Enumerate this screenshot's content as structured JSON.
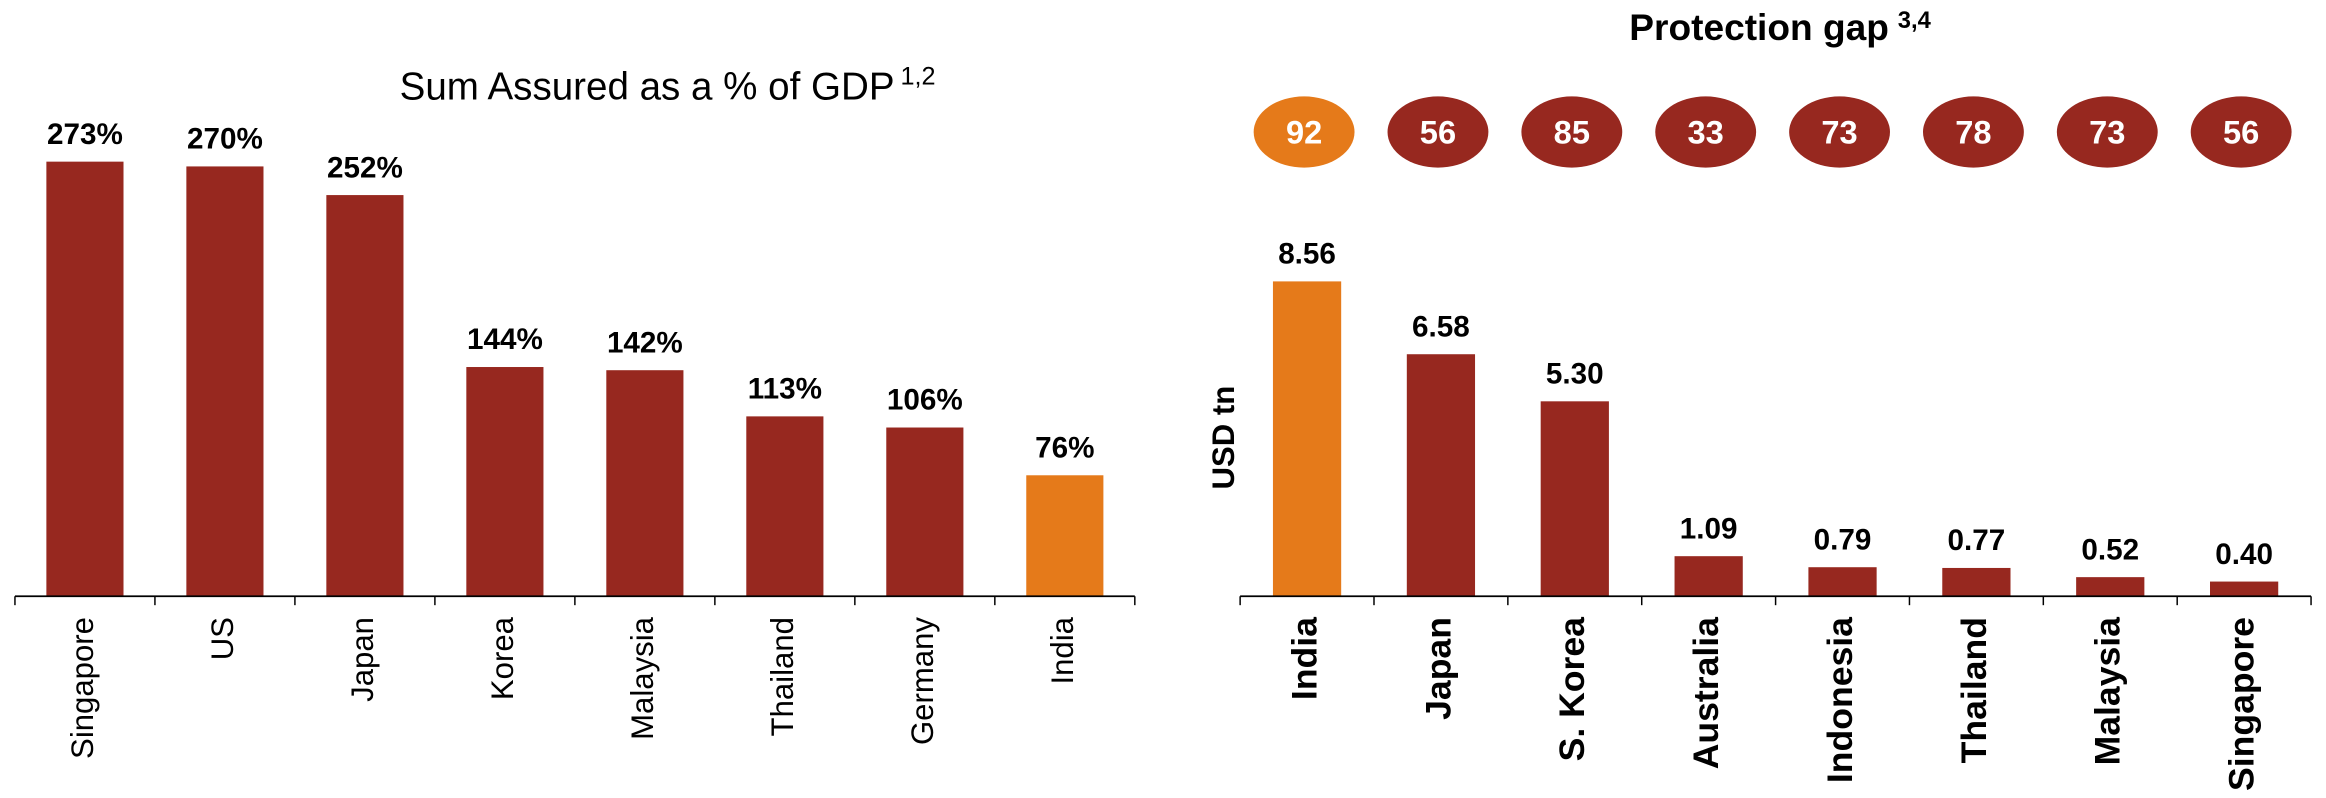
{
  "chart_data": [
    {
      "type": "bar",
      "title": "Sum Assured as a % of GDP",
      "title_note": "1,2",
      "categories": [
        "Singapore",
        "US",
        "Japan",
        "Korea",
        "Malaysia",
        "Thailand",
        "Germany",
        "India"
      ],
      "values": [
        273,
        270,
        252,
        144,
        142,
        113,
        106,
        76
      ],
      "value_labels": [
        "273%",
        "270%",
        "252%",
        "144%",
        "142%",
        "113%",
        "106%",
        "76%"
      ],
      "colors": [
        "#97281f",
        "#97281f",
        "#97281f",
        "#97281f",
        "#97281f",
        "#97281f",
        "#97281f",
        "#e57a1a"
      ],
      "ylim": [
        0,
        300
      ]
    },
    {
      "type": "bar",
      "title": "Protection gap",
      "title_note": "3,4",
      "ylabel": "USD tn",
      "badges": [
        92,
        56,
        85,
        33,
        73,
        78,
        73,
        56
      ],
      "badge_colors": [
        "#e57a1a",
        "#97281f",
        "#97281f",
        "#97281f",
        "#97281f",
        "#97281f",
        "#97281f",
        "#97281f"
      ],
      "categories": [
        "India",
        "Japan",
        "S. Korea",
        "Australia",
        "Indonesia",
        "Thailand",
        "Malaysia",
        "Singapore"
      ],
      "values": [
        8.56,
        6.58,
        5.3,
        1.09,
        0.79,
        0.77,
        0.52,
        0.4
      ],
      "value_labels": [
        "8.56",
        "6.58",
        "5.30",
        "1.09",
        "0.79",
        "0.77",
        "0.52",
        "0.40"
      ],
      "colors": [
        "#e57a1a",
        "#97281f",
        "#97281f",
        "#97281f",
        "#97281f",
        "#97281f",
        "#97281f",
        "#97281f"
      ],
      "ylim": [
        0,
        10
      ]
    }
  ]
}
